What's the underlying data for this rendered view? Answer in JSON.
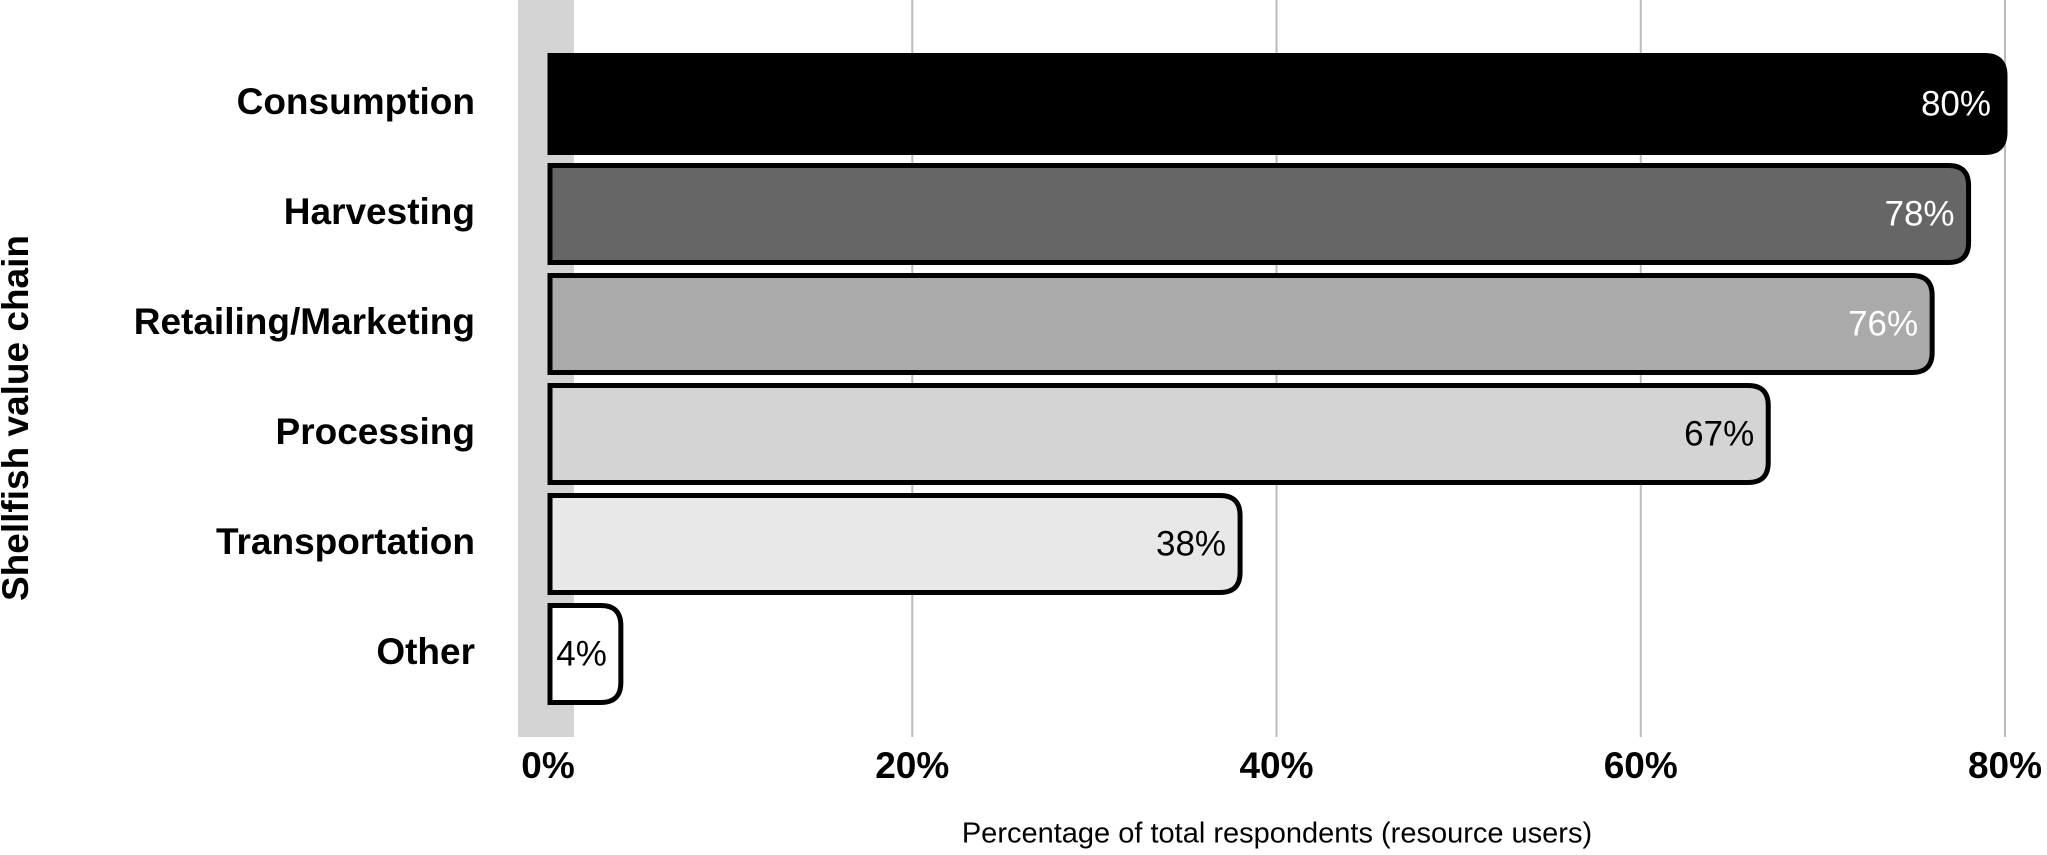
{
  "chart_data": {
    "type": "bar",
    "orientation": "horizontal",
    "y_label": "Shellfish value chain",
    "x_label": "Percentage of total respondents (resource users)",
    "categories": [
      "Consumption",
      "Harvesting",
      "Retailing/Marketing",
      "Processing",
      "Transportation",
      "Other"
    ],
    "values": [
      80,
      78,
      76,
      67,
      38,
      4
    ],
    "value_labels": [
      "80%",
      "78%",
      "76%",
      "67%",
      "38%",
      "4%"
    ],
    "colors": [
      "#000000",
      "#666666",
      "#aaaaaa",
      "#d4d4d4",
      "#e8e8e8",
      "#ffffff"
    ],
    "xlim": [
      0,
      80
    ],
    "xticks": [
      {
        "value": 0,
        "label": "0%"
      },
      {
        "value": 20,
        "label": "20%"
      },
      {
        "value": 40,
        "label": "40%"
      },
      {
        "value": 60,
        "label": "60%"
      },
      {
        "value": 80,
        "label": "80%"
      }
    ],
    "grid": true
  }
}
